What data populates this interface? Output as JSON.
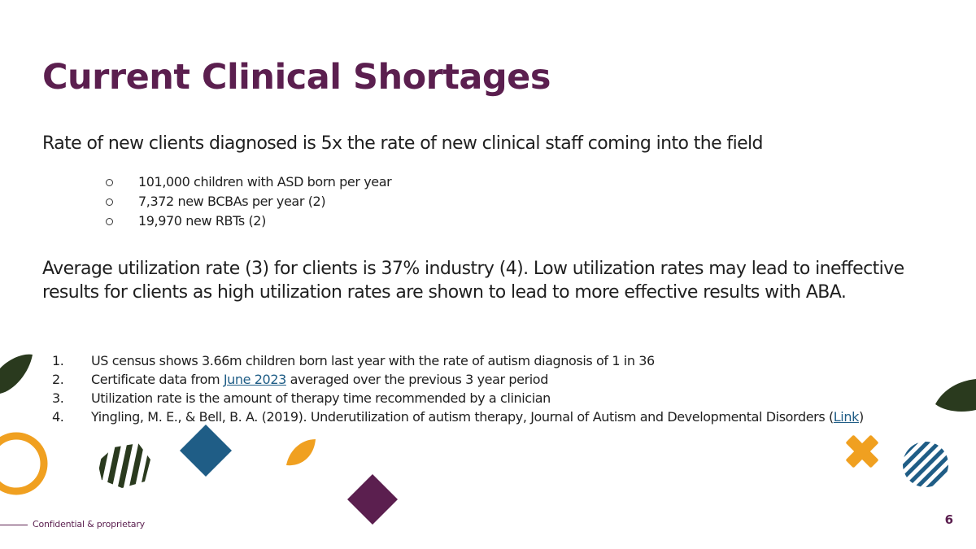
{
  "slide": {
    "title": "Current Clinical Shortages",
    "lead": "Rate of new clients diagnosed is 5x the rate of new clinical staff coming into the field",
    "bullets": [
      "101,000 children with ASD born per year",
      "7,372 new BCBAs per year (2)",
      "19,970 new RBTs  (2)"
    ],
    "utilization": "Average utilization rate (3) for clients is 37% industry (4). Low utilization rates may lead to ineffective results for clients as high utilization rates are shown to lead to more effective results with ABA.",
    "references": [
      {
        "num": "1.",
        "text": "US census shows 3.66m children born last year with the rate of autism diagnosis of 1 in 36"
      },
      {
        "num": "2.",
        "before": "Certificate data from ",
        "link": "June 2023",
        "after": " averaged over the previous 3 year period"
      },
      {
        "num": "3.",
        "text": "Utilization rate is the amount of therapy time recommended by a clinician"
      },
      {
        "num": "4.",
        "before": "Yingling, M. E., & Bell, B. A. (2019). Underutilization of autism therapy, Journal of Autism and Developmental Disorders (",
        "link": "Link",
        "after": ")"
      }
    ],
    "footer": "Confidential & proprietary",
    "page_number": "6"
  },
  "colors": {
    "title": "#5b1f4f",
    "link": "#1f5d86",
    "dark_green": "#2a3a1e",
    "orange": "#f0a020",
    "blue": "#1f5d86",
    "purple": "#5b1f4f"
  },
  "decorations": [
    "leaf-shape",
    "ring-shape",
    "striped-shape",
    "diamond-shape",
    "half-circle-shape",
    "diamond-shape",
    "cross-shape",
    "striped-circle-shape",
    "leaf-shape"
  ]
}
